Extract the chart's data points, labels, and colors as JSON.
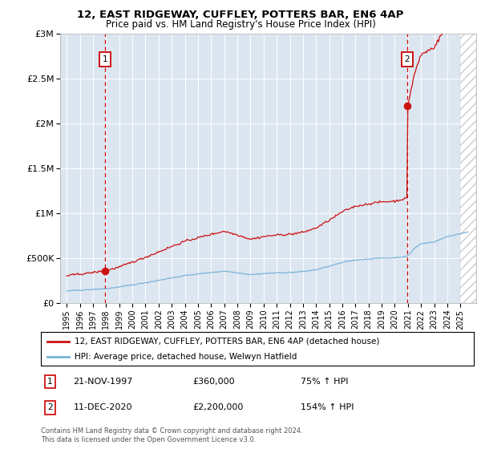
{
  "title1": "12, EAST RIDGEWAY, CUFFLEY, POTTERS BAR, EN6 4AP",
  "title2": "Price paid vs. HM Land Registry's House Price Index (HPI)",
  "background_color": "#dce6f1",
  "legend_line1": "12, EAST RIDGEWAY, CUFFLEY, POTTERS BAR, EN6 4AP (detached house)",
  "legend_line2": "HPI: Average price, detached house, Welwyn Hatfield",
  "annotation1_date": "21-NOV-1997",
  "annotation1_price": "£360,000",
  "annotation1_hpi": "75% ↑ HPI",
  "annotation2_date": "11-DEC-2020",
  "annotation2_price": "£2,200,000",
  "annotation2_hpi": "154% ↑ HPI",
  "footer": "Contains HM Land Registry data © Crown copyright and database right 2024.\nThis data is licensed under the Open Government Licence v3.0.",
  "sale1_year": 1997.9,
  "sale1_y": 360000,
  "sale2_year": 2020.95,
  "sale2_y": 2200000,
  "ylim": [
    0,
    3000000
  ],
  "xlim_start": 1994.5,
  "xlim_end": 2026.2,
  "yticks": [
    0,
    500000,
    1000000,
    1500000,
    2000000,
    2500000,
    3000000
  ],
  "ytick_labels": [
    "£0",
    "£500K",
    "£1M",
    "£1.5M",
    "£2M",
    "£2.5M",
    "£3M"
  ],
  "xticks": [
    1995,
    1996,
    1997,
    1998,
    1999,
    2000,
    2001,
    2002,
    2003,
    2004,
    2005,
    2006,
    2007,
    2008,
    2009,
    2010,
    2011,
    2012,
    2013,
    2014,
    2015,
    2016,
    2017,
    2018,
    2019,
    2020,
    2021,
    2022,
    2023,
    2024,
    2025
  ],
  "hpi_color": "#7ab4d8",
  "price_color": "#cc1111",
  "box_color": "#cc0000",
  "grid_color": "#ffffff",
  "vline_color": "#cc0000"
}
